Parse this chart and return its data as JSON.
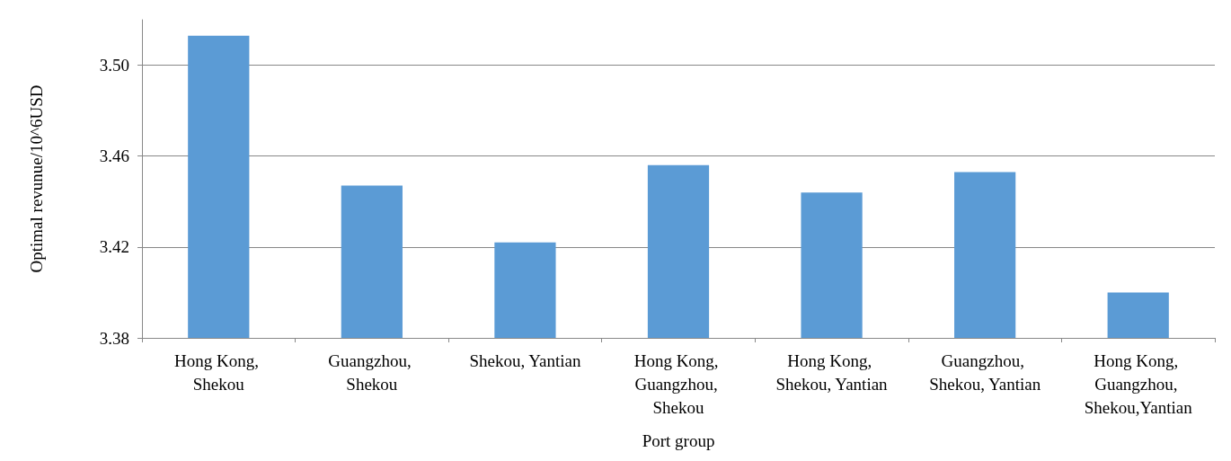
{
  "chart_data": {
    "type": "bar",
    "xlabel": "Port group",
    "ylabel": "Optimal revunue/10^6USD",
    "categories": [
      "Hong Kong, Shekou",
      "Guangzhou, Shekou",
      "Shekou, Yantian",
      "Hong Kong, Guangzhou, Shekou",
      "Hong Kong, Shekou, Yantian",
      "Guangzhou, Shekou, Yantian",
      "Hong Kong, Guangzhou, Shekou,Yantian"
    ],
    "values": [
      3.513,
      3.447,
      3.422,
      3.456,
      3.444,
      3.453,
      3.4
    ],
    "color": "#5b9bd5",
    "ylim": [
      3.38,
      3.52
    ],
    "yticks": [
      {
        "value": 3.38,
        "label": "3.38"
      },
      {
        "value": 3.42,
        "label": "3.42"
      },
      {
        "value": 3.46,
        "label": "3.46"
      },
      {
        "value": 3.5,
        "label": "3.50"
      }
    ],
    "grid": "y"
  }
}
